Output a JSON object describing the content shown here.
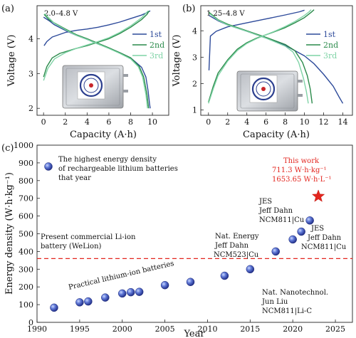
{
  "chart_data": [
    {
      "type": "line",
      "panel_label": "(a)",
      "annotation": "2.0–4.8 V",
      "xlabel": "Capacity (A·h)",
      "ylabel": "Voltage (V)",
      "xlim": [
        -0.6,
        11.5
      ],
      "ylim": [
        1.8,
        4.95
      ],
      "xticks": [
        0,
        2,
        4,
        6,
        8,
        10
      ],
      "yticks": [
        2,
        3,
        4
      ],
      "legend_position": "right",
      "series": [
        {
          "name": "1st",
          "color": "#2d4a9a",
          "charge": [
            [
              0.05,
              3.8
            ],
            [
              0.3,
              3.92
            ],
            [
              0.8,
              4.05
            ],
            [
              2,
              4.18
            ],
            [
              3,
              4.24
            ],
            [
              4,
              4.28
            ],
            [
              5,
              4.33
            ],
            [
              6,
              4.4
            ],
            [
              7,
              4.48
            ],
            [
              8,
              4.58
            ],
            [
              9,
              4.68
            ],
            [
              9.5,
              4.75
            ],
            [
              9.8,
              4.8
            ]
          ],
          "discharge": [
            [
              0,
              4.62
            ],
            [
              0.5,
              4.52
            ],
            [
              1,
              4.4
            ],
            [
              2,
              4.24
            ],
            [
              3,
              4.1
            ],
            [
              4,
              3.98
            ],
            [
              5,
              3.85
            ],
            [
              6,
              3.73
            ],
            [
              7,
              3.6
            ],
            [
              8,
              3.45
            ],
            [
              9,
              3.18
            ],
            [
              9.4,
              2.9
            ],
            [
              9.6,
              2.5
            ],
            [
              9.75,
              2.1
            ],
            [
              9.8,
              2.0
            ]
          ]
        },
        {
          "name": "2nd",
          "color": "#2a8a4a",
          "charge": [
            [
              0,
              2.9
            ],
            [
              0.3,
              3.2
            ],
            [
              0.8,
              3.45
            ],
            [
              1.5,
              3.58
            ],
            [
              3,
              3.72
            ],
            [
              4,
              3.8
            ],
            [
              5,
              3.9
            ],
            [
              6,
              4.0
            ],
            [
              7,
              4.15
            ],
            [
              8,
              4.33
            ],
            [
              9,
              4.55
            ],
            [
              9.5,
              4.7
            ],
            [
              9.7,
              4.8
            ]
          ],
          "discharge": [
            [
              0.05,
              4.7
            ],
            [
              0.5,
              4.55
            ],
            [
              1,
              4.45
            ],
            [
              2,
              4.28
            ],
            [
              3,
              4.12
            ],
            [
              4,
              4.0
            ],
            [
              5,
              3.87
            ],
            [
              6,
              3.74
            ],
            [
              7,
              3.6
            ],
            [
              8,
              3.45
            ],
            [
              8.8,
              3.2
            ],
            [
              9.2,
              2.9
            ],
            [
              9.5,
              2.4
            ],
            [
              9.65,
              2.0
            ]
          ]
        },
        {
          "name": "3rd",
          "color": "#7fd3a6",
          "charge": [
            [
              0,
              2.8
            ],
            [
              0.4,
              3.15
            ],
            [
              1,
              3.42
            ],
            [
              2,
              3.6
            ],
            [
              3,
              3.72
            ],
            [
              4,
              3.82
            ],
            [
              5,
              3.92
            ],
            [
              6,
              4.03
            ],
            [
              7,
              4.18
            ],
            [
              8,
              4.37
            ],
            [
              9,
              4.6
            ],
            [
              9.6,
              4.8
            ]
          ],
          "discharge": [
            [
              0.1,
              4.72
            ],
            [
              1,
              4.44
            ],
            [
              2,
              4.26
            ],
            [
              3,
              4.1
            ],
            [
              4,
              3.98
            ],
            [
              5,
              3.85
            ],
            [
              6,
              3.72
            ],
            [
              7,
              3.58
            ],
            [
              8,
              3.42
            ],
            [
              8.7,
              3.2
            ],
            [
              9.1,
              2.9
            ],
            [
              9.4,
              2.4
            ],
            [
              9.55,
              2.0
            ]
          ]
        }
      ]
    },
    {
      "type": "line",
      "panel_label": "(b)",
      "annotation": "1.25–4.8 V",
      "xlabel": "Capacity (A·h)",
      "ylabel": "Voltage (V)",
      "xlim": [
        -0.8,
        15
      ],
      "ylim": [
        0.8,
        4.95
      ],
      "xticks": [
        0,
        2,
        4,
        6,
        8,
        10,
        12,
        14
      ],
      "yticks": [
        1,
        2,
        3,
        4
      ],
      "legend_position": "right",
      "series": [
        {
          "name": "1st",
          "color": "#2d4a9a",
          "charge": [
            [
              0.05,
              2.5
            ],
            [
              0.2,
              3.8
            ],
            [
              0.8,
              3.98
            ],
            [
              2,
              4.15
            ],
            [
              4,
              4.3
            ],
            [
              6,
              4.45
            ],
            [
              8,
              4.6
            ],
            [
              9.5,
              4.72
            ],
            [
              10,
              4.78
            ]
          ],
          "discharge": [
            [
              0.05,
              4.58
            ],
            [
              1,
              4.38
            ],
            [
              2,
              4.22
            ],
            [
              4,
              3.98
            ],
            [
              6,
              3.72
            ],
            [
              8,
              3.45
            ],
            [
              10,
              3.05
            ],
            [
              11,
              2.75
            ],
            [
              12,
              2.35
            ],
            [
              13,
              1.9
            ],
            [
              13.6,
              1.5
            ],
            [
              14,
              1.25
            ]
          ]
        },
        {
          "name": "2nd",
          "color": "#2a8a4a",
          "charge": [
            [
              0,
              1.3
            ],
            [
              0.5,
              1.9
            ],
            [
              1,
              2.4
            ],
            [
              2,
              2.9
            ],
            [
              3,
              3.3
            ],
            [
              4,
              3.55
            ],
            [
              5,
              3.72
            ],
            [
              6,
              3.85
            ],
            [
              7,
              3.98
            ],
            [
              8,
              4.12
            ],
            [
              9,
              4.3
            ],
            [
              10,
              4.5
            ],
            [
              10.7,
              4.7
            ],
            [
              11,
              4.8
            ]
          ],
          "discharge": [
            [
              0.05,
              4.7
            ],
            [
              1,
              4.42
            ],
            [
              2,
              4.25
            ],
            [
              4,
              4.0
            ],
            [
              6,
              3.75
            ],
            [
              8,
              3.48
            ],
            [
              9,
              3.25
            ],
            [
              9.8,
              2.8
            ],
            [
              10.3,
              2.3
            ],
            [
              10.6,
              1.8
            ],
            [
              10.8,
              1.25
            ]
          ]
        },
        {
          "name": "3rd",
          "color": "#7fd3a6",
          "charge": [
            [
              0,
              1.25
            ],
            [
              0.5,
              1.8
            ],
            [
              1,
              2.3
            ],
            [
              2,
              2.85
            ],
            [
              3,
              3.25
            ],
            [
              4,
              3.52
            ],
            [
              5,
              3.7
            ],
            [
              6,
              3.85
            ],
            [
              7,
              4.0
            ],
            [
              8,
              4.16
            ],
            [
              9,
              4.35
            ],
            [
              10,
              4.58
            ],
            [
              10.5,
              4.72
            ],
            [
              10.7,
              4.8
            ]
          ],
          "discharge": [
            [
              0.1,
              4.65
            ],
            [
              1,
              4.4
            ],
            [
              2,
              4.22
            ],
            [
              4,
              3.98
            ],
            [
              6,
              3.72
            ],
            [
              8,
              3.42
            ],
            [
              8.8,
              3.2
            ],
            [
              9.4,
              2.8
            ],
            [
              9.9,
              2.2
            ],
            [
              10.2,
              1.7
            ],
            [
              10.4,
              1.25
            ]
          ]
        }
      ]
    },
    {
      "type": "scatter",
      "panel_label": "(c)",
      "xlabel": "Year",
      "ylabel": "Energy density (W·h·kg⁻¹)",
      "xlim": [
        1990,
        2027
      ],
      "ylim": [
        0,
        1000
      ],
      "xticks": [
        1990,
        1995,
        2000,
        2005,
        2010,
        2015,
        2020,
        2025
      ],
      "yticks": [
        0,
        100,
        200,
        300,
        400,
        500,
        600,
        700,
        800,
        900,
        1000
      ],
      "legend_text": [
        "The highest energy density",
        "of rechargeable lithium batteries",
        "that year"
      ],
      "points": [
        {
          "x": 1992,
          "y": 83
        },
        {
          "x": 1995,
          "y": 113
        },
        {
          "x": 1996,
          "y": 118
        },
        {
          "x": 1998,
          "y": 140
        },
        {
          "x": 2000,
          "y": 163
        },
        {
          "x": 2001,
          "y": 170
        },
        {
          "x": 2002,
          "y": 172
        },
        {
          "x": 2005,
          "y": 210
        },
        {
          "x": 2008,
          "y": 228
        },
        {
          "x": 2012,
          "y": 263
        },
        {
          "x": 2015,
          "y": 300
        },
        {
          "x": 2018,
          "y": 400
        },
        {
          "x": 2020,
          "y": 468
        },
        {
          "x": 2021,
          "y": 512
        },
        {
          "x": 2022,
          "y": 575
        }
      ],
      "this_work": {
        "x": 2023,
        "y": 711.3,
        "lines": [
          "This work",
          "711.3 W·h·kg⁻¹",
          "1653.65 W·h·L⁻¹"
        ]
      },
      "reference_line": {
        "y": 360,
        "lines": [
          "Present commercial Li-ion",
          "battery (WeLion)"
        ],
        "color": "#e3261f"
      },
      "trend_label": "Practical lithium-ion batteries",
      "annotations": [
        {
          "lines": [
            "JES",
            "Jeff Dahn",
            "NCM811|Cu"
          ]
        },
        {
          "lines": [
            "Nat. Energy",
            "Jeff Dahn",
            "NCM523|Cu"
          ]
        },
        {
          "lines": [
            "JES",
            "Jeff Dahn",
            "NCM811|Cu"
          ]
        },
        {
          "lines": [
            "Nat. Nanotechnol.",
            "Jun Liu",
            "NCM811|Li-C"
          ]
        }
      ]
    }
  ]
}
